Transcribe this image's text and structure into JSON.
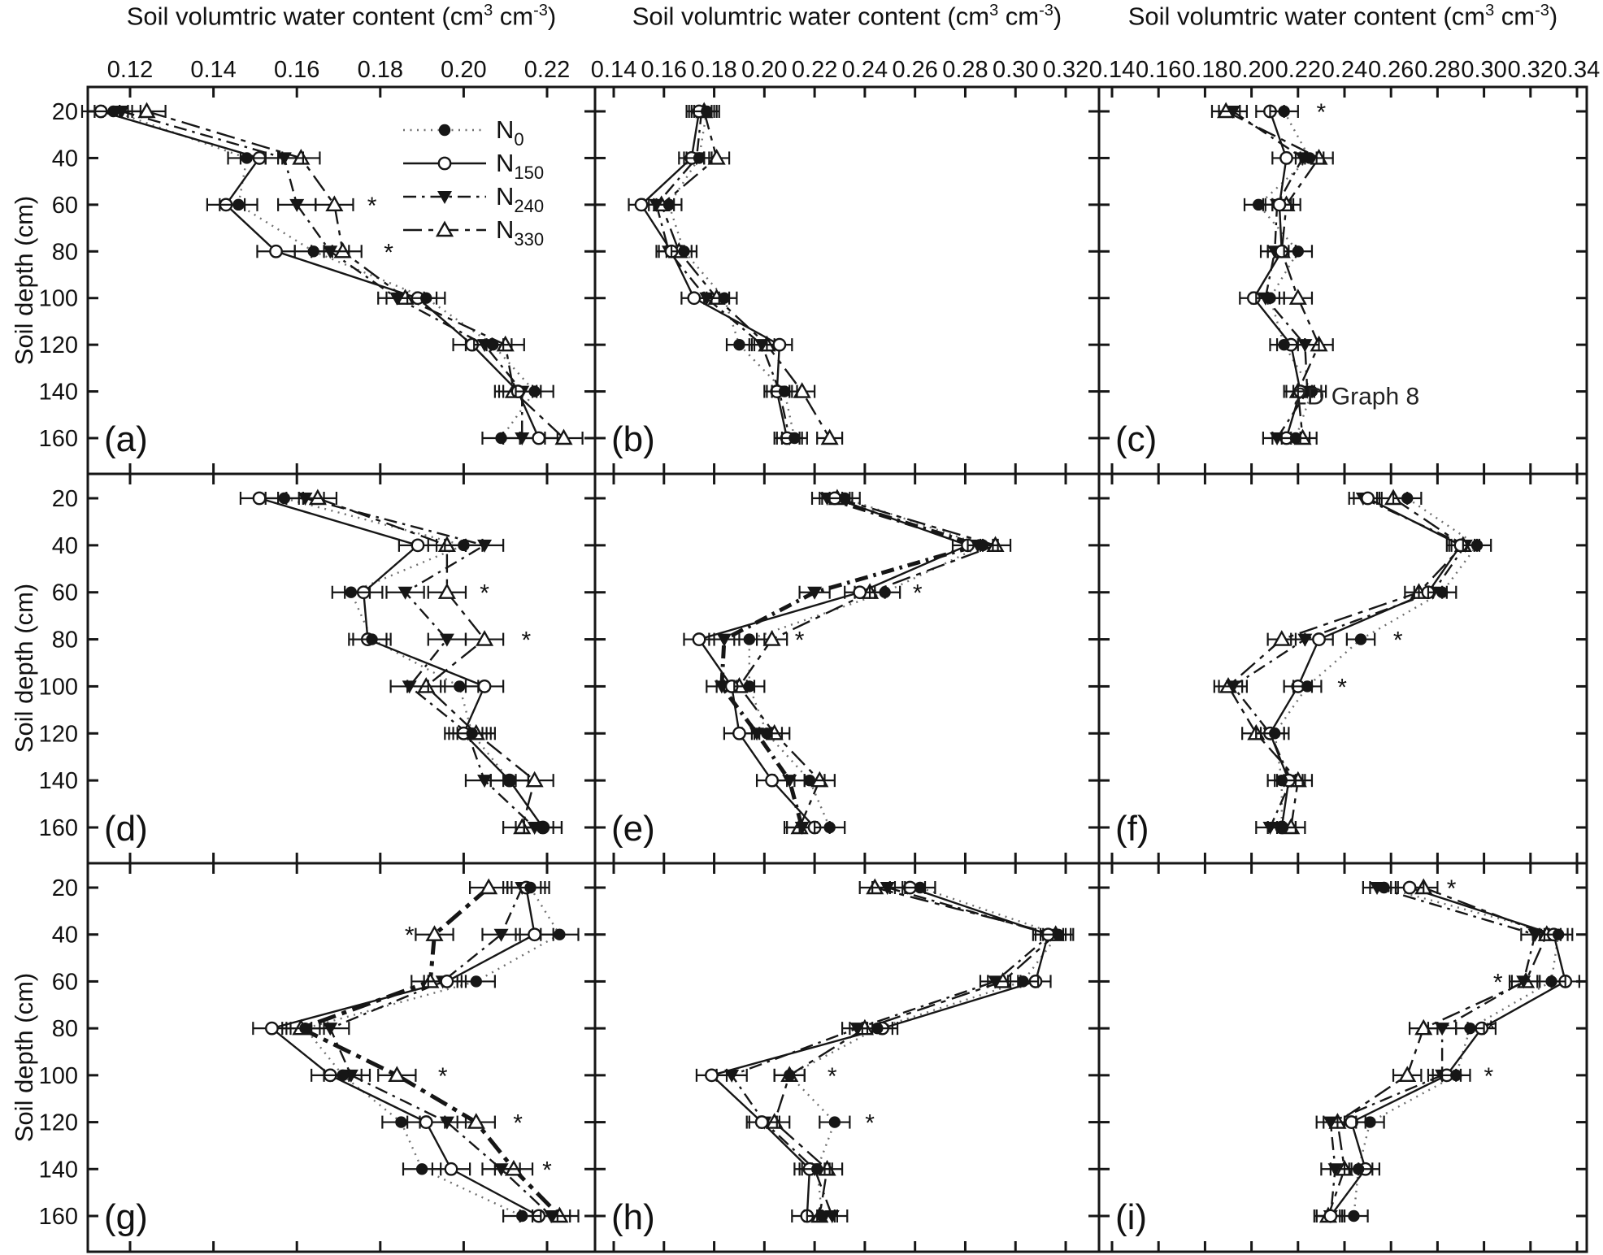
{
  "titles": {
    "x_pre": "Soil volumtric water content (cm",
    "x_sup1": "3",
    "x_mid": " cm",
    "x_sup2": "-3",
    "x_post": ")",
    "y": "Soil depth (cm)"
  },
  "colors": {
    "ink": "#161616",
    "dotted_line": "#6f6f6f",
    "background": "#ffffff"
  },
  "chart_data": {
    "type": "line",
    "x_axis_title": "Soil volumtric water content (cm3 cm-3)",
    "y_axis_title": "Soil depth (cm)",
    "grid": false,
    "depths": [
      20,
      40,
      60,
      80,
      100,
      120,
      140,
      160
    ],
    "depth_ticks": [
      20,
      40,
      60,
      80,
      100,
      120,
      140,
      160
    ],
    "columns": [
      {
        "ticks": [
          0.12,
          0.14,
          0.16,
          0.18,
          0.2,
          0.22
        ],
        "xlim": [
          0.11,
          0.231
        ]
      },
      {
        "ticks": [
          0.14,
          0.16,
          0.18,
          0.2,
          0.22,
          0.24,
          0.26,
          0.28,
          0.3,
          0.32
        ],
        "xlim": [
          0.133,
          0.333
        ]
      },
      {
        "ticks": [
          0.14,
          0.16,
          0.18,
          0.2,
          0.22,
          0.24,
          0.26,
          0.28,
          0.3,
          0.32,
          0.34
        ],
        "xlim": [
          0.134,
          0.344
        ]
      }
    ],
    "legend": {
      "position": "top-right-of-panel-a",
      "items": [
        {
          "series": "N0",
          "base": "N",
          "sub": "0"
        },
        {
          "series": "N150",
          "base": "N",
          "sub": "150"
        },
        {
          "series": "N240",
          "base": "N",
          "sub": "240"
        },
        {
          "series": "N330",
          "base": "N",
          "sub": "330"
        }
      ]
    },
    "series_styles": {
      "N0": {
        "line": "dotted",
        "dash": "2 6.5",
        "marker": "circle-filled",
        "color": "#6f6f6f",
        "width": 2.4
      },
      "N150": {
        "line": "solid",
        "dash": "",
        "marker": "circle-open",
        "color": "#161616",
        "width": 2.4
      },
      "N240": {
        "line": "dash-dot",
        "dash": "16 7 3.5 7",
        "marker": "triangle-down-filled",
        "color": "#161616",
        "width": 2.4
      },
      "N330": {
        "line": "long-dash",
        "dash": "23 8 6 8",
        "marker": "triangle-up-open",
        "color": "#161616",
        "width": 2.4
      }
    },
    "panels": [
      {
        "id": "a",
        "row": 0,
        "col": 0,
        "label": "(a)",
        "err": 0.0045,
        "bold": null,
        "stars": [
          {
            "v": 0.178,
            "depth": 60
          },
          {
            "v": 0.182,
            "depth": 80
          }
        ],
        "series": {
          "N0": [
            0.116,
            0.148,
            0.146,
            0.164,
            0.191,
            0.207,
            0.217,
            0.209
          ],
          "N150": [
            0.113,
            0.151,
            0.143,
            0.155,
            0.189,
            0.202,
            0.213,
            0.218
          ],
          "N240": [
            0.118,
            0.157,
            0.16,
            0.168,
            0.184,
            0.205,
            0.214,
            0.214
          ],
          "N330": [
            0.124,
            0.161,
            0.169,
            0.171,
            0.186,
            0.21,
            0.212,
            0.224
          ]
        }
      },
      {
        "id": "b",
        "row": 0,
        "col": 1,
        "label": "(b)",
        "err": 0.005,
        "bold": null,
        "stars": [],
        "series": {
          "N0": [
            0.177,
            0.174,
            0.162,
            0.168,
            0.184,
            0.19,
            0.208,
            0.212
          ],
          "N150": [
            0.174,
            0.171,
            0.151,
            0.163,
            0.172,
            0.206,
            0.205,
            0.209
          ],
          "N240": [
            0.175,
            0.173,
            0.157,
            0.162,
            0.177,
            0.199,
            0.206,
            0.21
          ],
          "N330": [
            0.176,
            0.181,
            0.159,
            0.166,
            0.181,
            0.201,
            0.215,
            0.226
          ]
        }
      },
      {
        "id": "c",
        "row": 0,
        "col": 2,
        "label": "(c)",
        "err": 0.006,
        "bold": null,
        "stars": [
          {
            "v": 0.23,
            "depth": 20
          }
        ],
        "annotation": {
          "text": "2D Graph 8",
          "v": 0.218,
          "depth": 142
        },
        "series": {
          "N0": [
            0.214,
            0.225,
            0.203,
            0.22,
            0.208,
            0.214,
            0.226,
            0.219
          ],
          "N150": [
            0.208,
            0.215,
            0.212,
            0.213,
            0.201,
            0.217,
            0.221,
            0.215
          ],
          "N240": [
            0.192,
            0.222,
            0.211,
            0.21,
            0.206,
            0.223,
            0.224,
            0.211
          ],
          "N330": [
            0.189,
            0.229,
            0.215,
            0.213,
            0.22,
            0.229,
            0.22,
            0.222
          ]
        }
      },
      {
        "id": "d",
        "row": 1,
        "col": 0,
        "label": "(d)",
        "err": 0.0045,
        "bold": null,
        "stars": [
          {
            "v": 0.205,
            "depth": 60
          },
          {
            "v": 0.215,
            "depth": 80
          }
        ],
        "series": {
          "N0": [
            0.157,
            0.2,
            0.173,
            0.178,
            0.199,
            0.202,
            0.211,
            0.219
          ],
          "N150": [
            0.151,
            0.189,
            0.176,
            0.177,
            0.205,
            0.2,
            0.211,
            0.219
          ],
          "N240": [
            0.162,
            0.205,
            0.186,
            0.196,
            0.187,
            0.201,
            0.205,
            0.217
          ],
          "N330": [
            0.165,
            0.196,
            0.196,
            0.205,
            0.191,
            0.203,
            0.217,
            0.214
          ]
        }
      },
      {
        "id": "e",
        "row": 1,
        "col": 1,
        "label": "(e)",
        "err": 0.006,
        "bold": "N240",
        "stars": [
          {
            "v": 0.261,
            "depth": 60
          },
          {
            "v": 0.214,
            "depth": 80
          }
        ],
        "series": {
          "N0": [
            0.232,
            0.287,
            0.248,
            0.194,
            0.194,
            0.201,
            0.218,
            0.226
          ],
          "N150": [
            0.228,
            0.281,
            0.238,
            0.174,
            0.187,
            0.19,
            0.203,
            0.22
          ],
          "N240": [
            0.225,
            0.285,
            0.22,
            0.184,
            0.183,
            0.197,
            0.21,
            0.215
          ],
          "N330": [
            0.229,
            0.292,
            0.242,
            0.203,
            0.19,
            0.204,
            0.222,
            0.214
          ]
        }
      },
      {
        "id": "f",
        "row": 1,
        "col": 2,
        "label": "(f)",
        "err": 0.006,
        "bold": null,
        "stars": [
          {
            "v": 0.263,
            "depth": 80
          },
          {
            "v": 0.239,
            "depth": 100
          }
        ],
        "series": {
          "N0": [
            0.267,
            0.297,
            0.282,
            0.247,
            0.224,
            0.21,
            0.213,
            0.213
          ],
          "N150": [
            0.25,
            0.29,
            0.276,
            0.229,
            0.22,
            0.208,
            0.216,
            0.213
          ],
          "N240": [
            0.248,
            0.292,
            0.278,
            0.223,
            0.192,
            0.208,
            0.217,
            0.208
          ],
          "N330": [
            0.261,
            0.291,
            0.272,
            0.213,
            0.19,
            0.202,
            0.22,
            0.217
          ]
        }
      },
      {
        "id": "g",
        "row": 2,
        "col": 0,
        "label": "(g)",
        "err": 0.0045,
        "bold": "N330",
        "stars": [
          {
            "v": 0.187,
            "depth": 40
          },
          {
            "v": 0.195,
            "depth": 100
          },
          {
            "v": 0.213,
            "depth": 120
          },
          {
            "v": 0.22,
            "depth": 140
          }
        ],
        "series": {
          "N0": [
            0.216,
            0.223,
            0.203,
            0.162,
            0.171,
            0.185,
            0.19,
            0.214
          ],
          "N150": [
            0.215,
            0.217,
            0.196,
            0.154,
            0.168,
            0.191,
            0.197,
            0.218
          ],
          "N240": [
            0.214,
            0.209,
            0.195,
            0.168,
            0.173,
            0.196,
            0.209,
            0.221
          ],
          "N330": [
            0.206,
            0.193,
            0.192,
            0.161,
            0.184,
            0.203,
            0.212,
            0.223
          ]
        }
      },
      {
        "id": "h",
        "row": 2,
        "col": 1,
        "label": "(h)",
        "err": 0.006,
        "bold": null,
        "stars": [
          {
            "v": 0.227,
            "depth": 100
          },
          {
            "v": 0.242,
            "depth": 120
          }
        ],
        "series": {
          "N0": [
            0.262,
            0.317,
            0.303,
            0.245,
            0.21,
            0.228,
            0.221,
            0.223
          ],
          "N150": [
            0.258,
            0.313,
            0.308,
            0.247,
            0.179,
            0.199,
            0.218,
            0.217
          ],
          "N240": [
            0.249,
            0.314,
            0.292,
            0.237,
            0.187,
            0.2,
            0.22,
            0.227
          ],
          "N330": [
            0.244,
            0.316,
            0.295,
            0.24,
            0.21,
            0.204,
            0.225,
            0.222
          ]
        }
      },
      {
        "id": "i",
        "row": 2,
        "col": 2,
        "label": "(i)",
        "err": 0.006,
        "bold": null,
        "stars": [
          {
            "v": 0.286,
            "depth": 20
          },
          {
            "v": 0.306,
            "depth": 60
          },
          {
            "v": 0.303,
            "depth": 80
          },
          {
            "v": 0.302,
            "depth": 100
          }
        ],
        "series": {
          "N0": [
            0.257,
            0.332,
            0.329,
            0.294,
            0.288,
            0.251,
            0.246,
            0.244
          ],
          "N150": [
            0.268,
            0.33,
            0.335,
            0.299,
            0.284,
            0.243,
            0.249,
            0.234
          ],
          "N240": [
            0.254,
            0.322,
            0.317,
            0.282,
            0.282,
            0.234,
            0.236,
            0.234
          ],
          "N330": [
            0.274,
            0.327,
            0.318,
            0.274,
            0.267,
            0.237,
            0.24,
            0.233
          ]
        }
      }
    ]
  }
}
